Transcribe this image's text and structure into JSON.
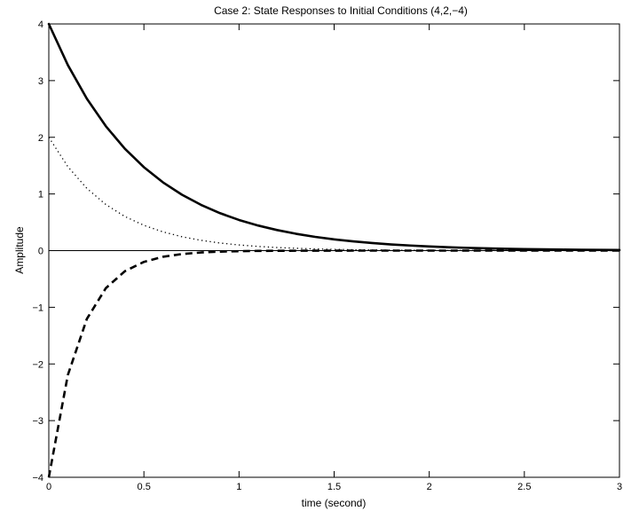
{
  "chart_data": {
    "type": "line",
    "title": "Case 2: State Responses to Initial Conditions (4,2,−4)",
    "xlabel": "time (second)",
    "ylabel": "Amplitude",
    "xlim": [
      0,
      3
    ],
    "ylim": [
      -4,
      4
    ],
    "xticks": [
      0,
      0.5,
      1,
      1.5,
      2,
      2.5,
      3
    ],
    "xtick_labels": [
      "0",
      "0.5",
      "1",
      "1.5",
      "2",
      "2.5",
      "3"
    ],
    "yticks": [
      -4,
      -3,
      -2,
      -1,
      0,
      1,
      2,
      3,
      4
    ],
    "ytick_labels": [
      "−4",
      "−3",
      "−2",
      "−1",
      "0",
      "1",
      "2",
      "3",
      "4"
    ],
    "grid": false,
    "reference_line_y": 0,
    "x": [
      0,
      0.1,
      0.2,
      0.3,
      0.4,
      0.5,
      0.6,
      0.7,
      0.8,
      0.9,
      1.0,
      1.1,
      1.2,
      1.3,
      1.4,
      1.5,
      1.6,
      1.7,
      1.8,
      1.9,
      2.0,
      2.1,
      2.2,
      2.3,
      2.4,
      2.5,
      2.6,
      2.7,
      2.8,
      2.9,
      3.0
    ],
    "series": [
      {
        "style": "solid",
        "color": "#000000",
        "values": [
          4.0,
          3.275,
          2.681,
          2.195,
          1.797,
          1.472,
          1.205,
          0.986,
          0.808,
          0.661,
          0.541,
          0.443,
          0.363,
          0.297,
          0.243,
          0.199,
          0.163,
          0.134,
          0.109,
          0.09,
          0.073,
          0.06,
          0.049,
          0.04,
          0.033,
          0.027,
          0.022,
          0.018,
          0.015,
          0.012,
          0.01
        ]
      },
      {
        "style": "dotted",
        "color": "#000000",
        "values": [
          2.0,
          1.482,
          1.098,
          0.813,
          0.602,
          0.446,
          0.331,
          0.245,
          0.182,
          0.134,
          0.1,
          0.074,
          0.055,
          0.041,
          0.03,
          0.022,
          0.016,
          0.012,
          0.009,
          0.007,
          0.005,
          0.004,
          0.003,
          0.002,
          0.002,
          0.001,
          0.001,
          0.001,
          0.0,
          0.0,
          0.0
        ]
      },
      {
        "style": "dashed",
        "color": "#000000",
        "values": [
          -4.0,
          -2.196,
          -1.205,
          -0.661,
          -0.363,
          -0.199,
          -0.109,
          -0.06,
          -0.033,
          -0.018,
          -0.01,
          -0.005,
          -0.003,
          -0.002,
          -0.001,
          -0.001,
          0.0,
          0.0,
          0.0,
          0.0,
          0.0,
          0.0,
          0.0,
          0.0,
          0.0,
          0.0,
          0.0,
          0.0,
          0.0,
          0.0,
          0.0
        ]
      }
    ]
  }
}
